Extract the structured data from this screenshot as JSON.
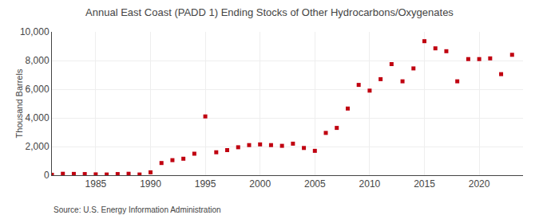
{
  "chart_data": {
    "type": "scatter",
    "title": "Annual East Coast (PADD 1) Ending Stocks of Other Hydrocarbons/Oxygenates",
    "ylabel": "Thousand Barrels",
    "annotations": [
      "Source: U.S. Energy Information Administration"
    ],
    "x": [
      1981,
      1982,
      1983,
      1984,
      1985,
      1986,
      1987,
      1988,
      1989,
      1990,
      1991,
      1992,
      1993,
      1994,
      1995,
      1996,
      1997,
      1998,
      1999,
      2000,
      2001,
      2002,
      2003,
      2004,
      2005,
      2006,
      2007,
      2008,
      2009,
      2010,
      2011,
      2012,
      2013,
      2014,
      2015,
      2016,
      2017,
      2018,
      2019,
      2020,
      2021,
      2022,
      2023
    ],
    "values": [
      30,
      100,
      90,
      80,
      60,
      50,
      80,
      100,
      50,
      200,
      850,
      1050,
      1150,
      1500,
      4100,
      1600,
      1750,
      1950,
      2100,
      2150,
      2100,
      2050,
      2200,
      1900,
      1700,
      2950,
      3300,
      4650,
      6300,
      5900,
      6700,
      7750,
      6550,
      7450,
      9350,
      8850,
      8650,
      6550,
      8100,
      8100,
      8150,
      7050,
      8400
    ],
    "color": "#c00010",
    "marker": "square",
    "xlim": [
      1981,
      2024
    ],
    "xticks": [
      1985,
      1990,
      1995,
      2000,
      2005,
      2010,
      2015,
      2020
    ],
    "ylim": [
      0,
      10000
    ],
    "yticks": [
      0,
      {
        "value": 2000,
        "label": "2,000"
      },
      {
        "value": 4000,
        "label": "4,000"
      },
      {
        "value": 6000,
        "label": "6,000"
      },
      {
        "value": 8000,
        "label": "8,000"
      },
      {
        "value": 10000,
        "label": "10,000"
      }
    ],
    "grid": true
  }
}
